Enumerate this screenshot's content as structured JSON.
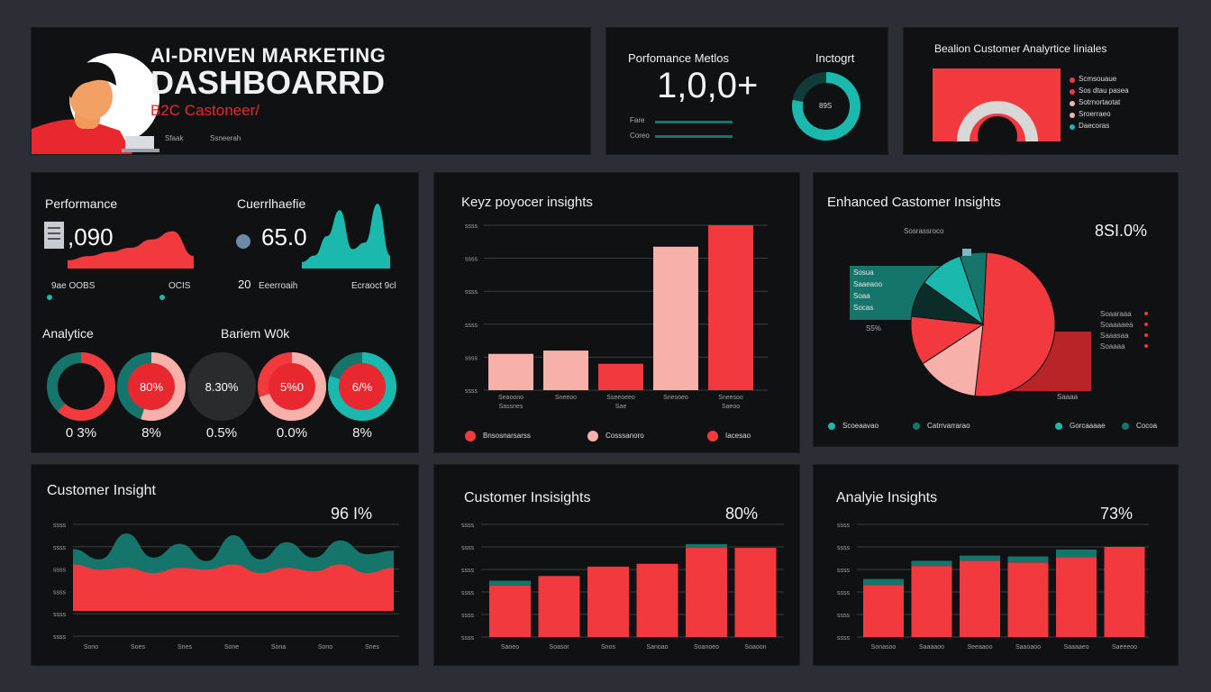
{
  "colors": {
    "red": "#f23a3e",
    "pink": "#f8b1aa",
    "teal": "#1bb9ad",
    "teal_dark": "#16756b",
    "panel": "#101113",
    "bg": "#2b2e34"
  },
  "header": {
    "title_line1": "AI-DRIVEN MARKETING",
    "title_line2": "DASHBOARRD",
    "subtitle": "B2C Castoneer/",
    "footer_a": "Sfaak",
    "footer_b": "Ssneerah",
    "avatar_icon": "user-avatar-icon",
    "laptop_icon": "laptop-icon"
  },
  "metrics_panel": {
    "title": "Porfomance Metlos",
    "insight_label": "Inctogrt",
    "value": "1,0,0+",
    "row1_label": "Fare",
    "row2_label": "Coreo",
    "donut_label": "89S",
    "donut_fraction": 0.78
  },
  "analytics_panel": {
    "title": "Bealion Customer Analyrtice Iiniales",
    "legend": [
      {
        "label": "Scmsouaue",
        "color": "#f23a3e"
      },
      {
        "label": "Sos dtau pasea",
        "color": "#f23a3e"
      },
      {
        "label": "Sotrnortaotat",
        "color": "#f8b1aa"
      },
      {
        "label": "Sroerraeo",
        "color": "#f8b1aa"
      },
      {
        "label": "Daecoras",
        "color": "#1bb9ad"
      }
    ]
  },
  "left_mid": {
    "perf_title": "Performance",
    "perf_value": ",090",
    "perf_sub1": "9ae OOBS",
    "perf_sub2": "OCIS",
    "cust_title": "Cuerrlhaefie",
    "cust_value": "65.0",
    "cust_sub1": "20",
    "cust_sub1b": "Eeerroaih",
    "cust_sub2": "Ecraoct 9cl",
    "analytics_label": "Analytice",
    "barium_label": "Bariem W0k"
  },
  "gauges": [
    {
      "center": "",
      "label": "0 3%",
      "fraction": 0.62,
      "ring": "#f23a3e",
      "base": "#16756b",
      "fill": "#101113"
    },
    {
      "center": "80%",
      "label": "8%",
      "fraction": 0.55,
      "ring": "#f8b1aa",
      "base": "#16756b",
      "fill": "#e8282e"
    },
    {
      "center": "8.30%",
      "label": "0.5%",
      "fraction": 0.0,
      "ring": "#2a2b2e",
      "base": "#2a2b2e",
      "fill": "#2a2b2e"
    },
    {
      "center": "5%0",
      "label": "0.0%",
      "fraction": 0.7,
      "ring": "#f8b1aa",
      "base": "#f23a3e",
      "fill": "#e8282e"
    },
    {
      "center": "6/%",
      "label": "8%",
      "fraction": 0.8,
      "ring": "#1bb9ad",
      "base": "#16756b",
      "fill": "#e8282e"
    }
  ],
  "key_panel": {
    "title": "Keyz poyocer insights",
    "yticks": [
      "ssss",
      "ssss",
      "ssss",
      "ssss",
      "ssss",
      "ssss"
    ],
    "legend": [
      {
        "label": "Bnsosnarsarss",
        "color": "#f23a3e"
      },
      {
        "label": "Cosssanoro",
        "color": "#f8b1aa"
      },
      {
        "label": "Iacesao",
        "color": "#f23a3e"
      }
    ]
  },
  "enhanced_panel": {
    "title": "Enhanced Castomer Insights",
    "value": "8SI.0%",
    "top_label": "Sosrassroco",
    "left_labels": [
      "Sosua",
      "Saaeaoo",
      "Soaa",
      "Socas"
    ],
    "left_small": "S5%",
    "right_labels": [
      "Soaaraaa",
      "Soaaaaea",
      "Saaasaa",
      "Soaaaa"
    ],
    "bottom_small": "Saaaa",
    "legend": [
      {
        "label": "Scoeaavao",
        "color": "#1bb9ad"
      },
      {
        "label": "Catrrvarrarao",
        "color": "#16756b"
      },
      {
        "label": "Gorcaaaae",
        "color": "#1bb9ad"
      },
      {
        "label": "Cocoa",
        "color": "#16756b"
      }
    ]
  },
  "bottom_left": {
    "title": "Customer Insight",
    "value": "96 I%",
    "yticks": [
      "ssss",
      "ssss",
      "ssss",
      "ssss",
      "ssss",
      "ssss"
    ],
    "xticks": [
      "Sono",
      "Soes",
      "Snes",
      "Sone",
      "Sona",
      "Sono",
      "Snes"
    ]
  },
  "bottom_mid": {
    "title": "Customer Insisights",
    "value": "80%",
    "yticks": [
      "ssss",
      "ssss",
      "ssss",
      "ssss",
      "ssss",
      "ssss"
    ],
    "xticks": [
      "Saoeo",
      "Soasor",
      "Snos",
      "Sanoao",
      "Soanoeo",
      "Soaoon"
    ]
  },
  "bottom_right": {
    "title": "Analyie Insights",
    "value": "73%",
    "yticks": [
      "ssss",
      "ssss",
      "ssss",
      "ssss",
      "ssss",
      "ssss"
    ],
    "xticks": [
      "Sonasoo",
      "Saaaaoo",
      "Seeaaoo",
      "Saaoaoo",
      "Saaaaeo",
      "Saeeeoo"
    ]
  },
  "chart_data": [
    {
      "type": "area",
      "title": "Performance",
      "x": [
        1,
        2,
        3,
        4,
        5,
        6,
        7
      ],
      "series": [
        {
          "values": [
            2,
            3,
            4,
            5,
            7,
            9,
            3
          ]
        }
      ],
      "ylim": [
        0,
        10
      ]
    },
    {
      "type": "area",
      "title": "Cuerrlhaefie",
      "x": [
        1,
        2,
        3,
        4,
        5,
        6,
        7,
        8
      ],
      "series": [
        {
          "values": [
            1,
            2,
            5,
            9,
            3,
            4,
            10,
            2
          ]
        }
      ],
      "ylim": [
        0,
        10
      ]
    },
    {
      "type": "bar",
      "title": "Keyz poyocer insights",
      "categories": [
        "Seaoono",
        "Sneeoo",
        "Sseeoeeo",
        "Snesoeo",
        "Sneesoo"
      ],
      "xlabels2": [
        "Sassnes",
        "",
        "Sae",
        "",
        "Saeoo"
      ],
      "values": [
        22,
        24,
        16,
        87,
        100
      ],
      "ylim": [
        0,
        100
      ]
    },
    {
      "type": "pie",
      "title": "Enhanced Castomer Insights",
      "series": [
        {
          "name": "",
          "values": [
            51,
            14,
            11,
            8,
            10,
            6
          ]
        }
      ],
      "slice_colors": [
        "#f23a3e",
        "#f8b1aa",
        "#f23a3e",
        "#0c2c2a",
        "#1bb9ad",
        "#16756b"
      ]
    },
    {
      "type": "area",
      "title": "Customer Insight",
      "x": [
        0,
        1,
        2,
        3,
        4,
        5,
        6,
        7,
        8,
        9,
        10,
        11,
        12
      ],
      "series": [
        {
          "values": [
            54,
            48,
            50,
            44,
            50,
            48,
            54,
            44,
            50,
            46,
            54,
            44,
            50
          ]
        },
        {
          "values": [
            72,
            60,
            90,
            62,
            78,
            58,
            88,
            60,
            80,
            62,
            82,
            66,
            70
          ]
        }
      ],
      "ylim": [
        0,
        130
      ]
    },
    {
      "type": "bar",
      "title": "Customer Insisights",
      "categories": [
        "Saoeo",
        "Soasor",
        "Snos",
        "Sanoao",
        "Soanoeo",
        "Soaoon"
      ],
      "values": [
        55,
        65,
        75,
        78,
        95,
        95
      ],
      "caps": [
        5,
        0,
        0,
        0,
        4,
        0
      ],
      "ylim": [
        0,
        120
      ]
    },
    {
      "type": "bar",
      "title": "Analyie Insights",
      "categories": [
        "Sonasoo",
        "Saaaaoo",
        "Seeaaoo",
        "Saaoaoo",
        "Saaaaeo",
        "Saeeeoo"
      ],
      "values": [
        60,
        82,
        88,
        86,
        92,
        104
      ],
      "caps": [
        7,
        6,
        6,
        7,
        9,
        0
      ],
      "ylim": [
        0,
        130
      ]
    }
  ]
}
